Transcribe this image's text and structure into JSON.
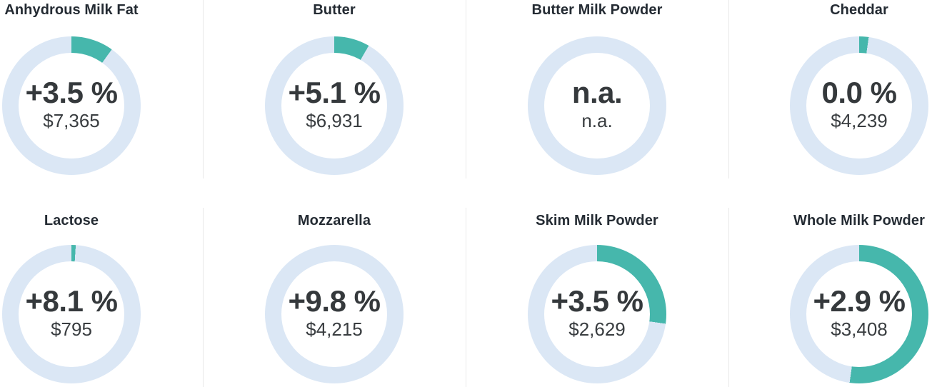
{
  "page": {
    "background": "#ffffff"
  },
  "chart_data": {
    "type": "donut",
    "layout": {
      "grid": "2 rows x 4 columns",
      "legend": "none",
      "arc_start": "top, clockwise"
    },
    "colors": {
      "arc": "#46b7ac",
      "track": "#dbe7f5",
      "title_text": "#242b33",
      "value_text": "#35393c",
      "divider": "#e9e9e9"
    },
    "charts": [
      {
        "title": "Anhydrous Milk Fat",
        "change": "+3.5 %",
        "price": "$7,365",
        "arc_percent": 9.9
      },
      {
        "title": "Butter",
        "change": "+5.1 %",
        "price": "$6,931",
        "arc_percent": 8.3
      },
      {
        "title": "Butter Milk Powder",
        "change": "n.a.",
        "price": "n.a.",
        "arc_percent": 0
      },
      {
        "title": "Cheddar",
        "change": "0.0 %",
        "price": "$4,239",
        "arc_percent": 2.2
      },
      {
        "title": "Lactose",
        "change": "+8.1 %",
        "price": "$795",
        "arc_percent": 1.0
      },
      {
        "title": "Mozzarella",
        "change": "+9.8 %",
        "price": "$4,215",
        "arc_percent": 0
      },
      {
        "title": "Skim Milk Powder",
        "change": "+3.5 %",
        "price": "$2,629",
        "arc_percent": 27.2
      },
      {
        "title": "Whole Milk Powder",
        "change": "+2.9 %",
        "price": "$3,408",
        "arc_percent": 52.2
      }
    ]
  }
}
